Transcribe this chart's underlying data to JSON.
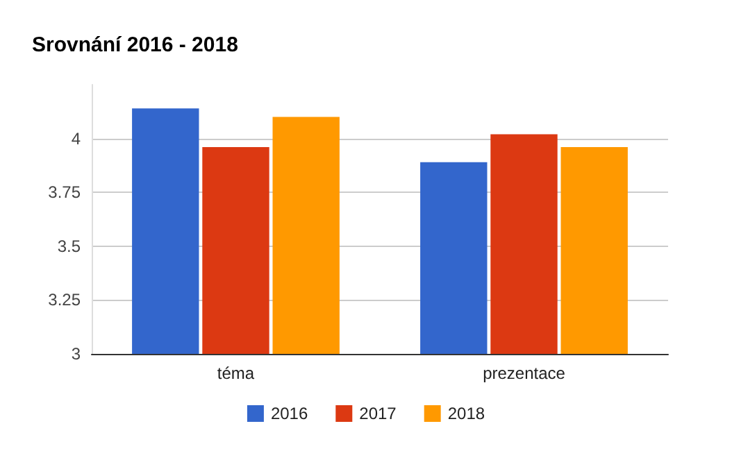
{
  "chart_data": {
    "type": "bar",
    "title": "Srovnání 2016 - 2018",
    "categories": [
      "téma",
      "prezentace"
    ],
    "series": [
      {
        "name": "2016",
        "color": "#3366cc",
        "values": [
          4.14,
          3.89
        ]
      },
      {
        "name": "2017",
        "color": "#dc3912",
        "values": [
          3.96,
          4.02
        ]
      },
      {
        "name": "2018",
        "color": "#ff9900",
        "values": [
          4.1,
          3.96
        ]
      }
    ],
    "ylim": [
      3,
      4.25
    ],
    "yticks": [
      3,
      3.25,
      3.5,
      3.75,
      4
    ],
    "grid": "y",
    "legend": "bottom"
  }
}
